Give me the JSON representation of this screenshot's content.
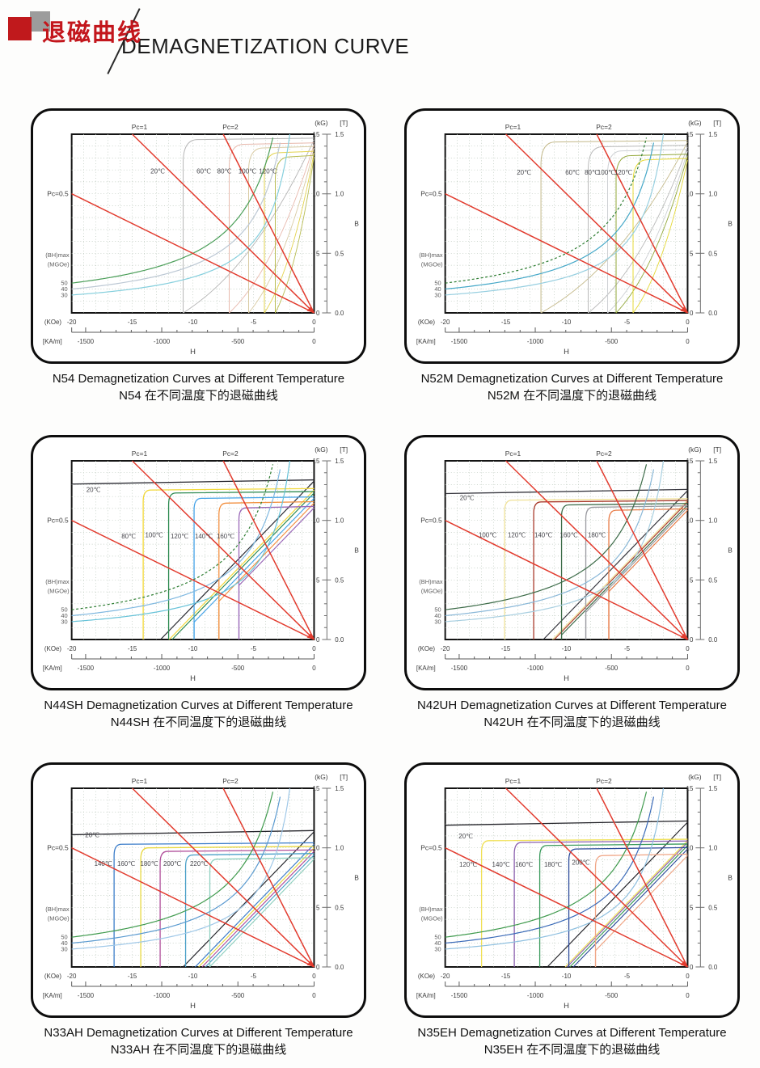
{
  "header": {
    "title_zh": "退磁曲线",
    "title_en": "DEMAGNETIZATION CURVE"
  },
  "colors": {
    "load_line": "#e23b2e",
    "grid": "#b9c6ba",
    "plot_border": "#141414",
    "axis": "#6e6e6e",
    "axis_text": "#3a3a3a",
    "unit_text": "#5f5f5f",
    "header_red": "#c3161c"
  },
  "axes": {
    "kg_unit": "(kG)",
    "t_unit": "[T]",
    "b_label": "B",
    "h_label": "H",
    "kg_tick_values": [
      15,
      10,
      5,
      0
    ],
    "kg_ticks": [
      "15",
      "10",
      "5",
      "0"
    ],
    "t_ticks": [
      "1.5",
      "1.0",
      "0.5",
      "0.0"
    ],
    "koe_label": "(KOe)",
    "koe_ticks": [
      -20,
      -15,
      -10,
      -5,
      0
    ],
    "kam_label": "[KA/m]",
    "kam_ticks": [
      -1500,
      -1000,
      -500,
      0
    ],
    "bhmax_label": "(BH)max",
    "mgoe_label": "(MGOe)",
    "bhmax_values": [
      50,
      40,
      30
    ],
    "pc05": "Pc=0.5",
    "pc1": "Pc=1",
    "pc2": "Pc=2",
    "xlim_koe": [
      -20,
      0
    ],
    "ylim_kg": [
      0,
      15
    ]
  },
  "chart_data": [
    {
      "type": "line",
      "id": "N54",
      "caption_en": "N54 Demagnetization Curves at Different Temperature",
      "caption_zh": "N54 在不同温度下的退磁曲线",
      "xlabel": "H",
      "ylabel": "B",
      "soft_knee": true,
      "load_lines_pc": [
        0.5,
        1,
        2
      ],
      "bhmax_hyperbolas_mgoe": [
        50,
        40,
        30
      ],
      "hyperbola_colors": [
        "#4a9e58",
        "#bcc8d4",
        "#85cfdd"
      ],
      "hyperbola_50_dashed": false,
      "series": [
        {
          "temp_c": 20,
          "label": "20℃",
          "color": "#b5b5b5",
          "br_kg": 14.55,
          "hcj_koe": 10.8,
          "label_pos": [
            -12.9,
            11.7
          ]
        },
        {
          "temp_c": 60,
          "label": "60℃",
          "color": "#e8b9ad",
          "br_kg": 14.15,
          "hcj_koe": 7.0,
          "label_pos": [
            -9.1,
            11.7
          ]
        },
        {
          "temp_c": 80,
          "label": "80℃",
          "color": "#d9cba4",
          "br_kg": 13.85,
          "hcj_koe": 5.4,
          "label_pos": [
            -7.4,
            11.7
          ]
        },
        {
          "temp_c": 100,
          "label": "100℃",
          "color": "#e3d34f",
          "br_kg": 13.45,
          "hcj_koe": 4.1,
          "label_pos": [
            -5.5,
            11.7
          ]
        },
        {
          "temp_c": 120,
          "label": "120℃",
          "color": "#b8bc52",
          "br_kg": 13.1,
          "hcj_koe": 3.2,
          "label_pos": [
            -3.8,
            11.7
          ]
        }
      ]
    },
    {
      "type": "line",
      "id": "N52M",
      "caption_en": "N52M Demagnetization Curves at Different Temperature",
      "caption_zh": "N52M 在不同温度下的退磁曲线",
      "xlabel": "H",
      "ylabel": "B",
      "soft_knee": true,
      "load_lines_pc": [
        0.5,
        1,
        2
      ],
      "bhmax_hyperbolas_mgoe": [
        50,
        40,
        30
      ],
      "hyperbola_colors": [
        "#2e7d32",
        "#45a8c8",
        "#97cfe0"
      ],
      "hyperbola_50_dashed": true,
      "series": [
        {
          "temp_c": 20,
          "label": "20℃",
          "color": "#c4b98a",
          "br_kg": 14.35,
          "hcj_koe": 12.1,
          "label_pos": [
            -13.5,
            11.6
          ]
        },
        {
          "temp_c": 60,
          "label": "60℃",
          "color": "#b9b9b9",
          "br_kg": 13.95,
          "hcj_koe": 8.2,
          "label_pos": [
            -9.5,
            11.6
          ]
        },
        {
          "temp_c": 80,
          "label": "80℃",
          "color": "#cdd0d4",
          "br_kg": 13.6,
          "hcj_koe": 6.6,
          "label_pos": [
            -7.9,
            11.6
          ]
        },
        {
          "temp_c": 100,
          "label": "100℃",
          "color": "#93a83b",
          "br_kg": 13.2,
          "hcj_koe": 5.9,
          "label_pos": [
            -6.7,
            11.6
          ]
        },
        {
          "temp_c": 120,
          "label": "120℃",
          "color": "#e4d835",
          "br_kg": 12.85,
          "hcj_koe": 4.5,
          "label_pos": [
            -5.3,
            11.6
          ]
        }
      ]
    },
    {
      "type": "line",
      "id": "N44SH",
      "caption_en": "N44SH Demagnetization Curves at Different Temperature",
      "caption_zh": "N44SH 在不同温度下的退磁曲线",
      "xlabel": "H",
      "ylabel": "B",
      "soft_knee": false,
      "load_lines_pc": [
        0.5,
        1,
        2
      ],
      "bhmax_hyperbolas_mgoe": [
        50,
        40,
        30
      ],
      "hyperbola_colors": [
        "#2e7d32",
        "#7fb8e0",
        "#66c2d8"
      ],
      "hyperbola_50_dashed": true,
      "series": [
        {
          "temp_c": 20,
          "label": "20℃",
          "color": "#26262e",
          "br_kg": 13.3,
          "hcj_koe": 21,
          "label_pos": [
            -18.2,
            12.4
          ]
        },
        {
          "temp_c": 80,
          "label": "80℃",
          "color": "#f2d838",
          "br_kg": 12.55,
          "hcj_koe": 14.1,
          "label_pos": [
            -15.3,
            8.5
          ]
        },
        {
          "temp_c": 100,
          "label": "100℃",
          "color": "#2c8a50",
          "br_kg": 12.3,
          "hcj_koe": 12.0,
          "label_pos": [
            -13.2,
            8.6
          ]
        },
        {
          "temp_c": 120,
          "label": "120℃",
          "color": "#44a3e8",
          "br_kg": 11.85,
          "hcj_koe": 9.9,
          "label_pos": [
            -11.1,
            8.5
          ]
        },
        {
          "temp_c": 140,
          "label": "140℃",
          "color": "#f29040",
          "br_kg": 11.45,
          "hcj_koe": 7.85,
          "label_pos": [
            -9.1,
            8.5
          ]
        },
        {
          "temp_c": 160,
          "label": "160℃",
          "color": "#9a68b8",
          "br_kg": 11.05,
          "hcj_koe": 6.2,
          "label_pos": [
            -7.3,
            8.5
          ]
        }
      ]
    },
    {
      "type": "line",
      "id": "N42UH",
      "caption_en": "N42UH Demagnetization Curves at Different Temperature",
      "caption_zh": "N42UH 在不同温度下的退磁曲线",
      "xlabel": "H",
      "ylabel": "B",
      "soft_knee": false,
      "load_lines_pc": [
        0.5,
        1,
        2
      ],
      "bhmax_hyperbolas_mgoe": [
        50,
        40,
        30
      ],
      "hyperbola_colors": [
        "#3c6b48",
        "#8ab8d8",
        "#a8cfe0"
      ],
      "hyperbola_50_dashed": false,
      "series": [
        {
          "temp_c": 20,
          "label": "20℃",
          "color": "#34343c",
          "br_kg": 12.5,
          "hcj_koe": 21,
          "label_pos": [
            -18.2,
            11.7
          ]
        },
        {
          "temp_c": 100,
          "label": "100℃",
          "color": "#f0e298",
          "br_kg": 11.7,
          "hcj_koe": 15.1,
          "label_pos": [
            -16.5,
            8.6
          ]
        },
        {
          "temp_c": 120,
          "label": "120℃",
          "color": "#a8392a",
          "br_kg": 11.55,
          "hcj_koe": 12.7,
          "label_pos": [
            -14.1,
            8.6
          ]
        },
        {
          "temp_c": 140,
          "label": "140℃",
          "color": "#3c6b48",
          "br_kg": 11.3,
          "hcj_koe": 10.4,
          "label_pos": [
            -11.9,
            8.6
          ]
        },
        {
          "temp_c": 160,
          "label": "160℃",
          "color": "#9a9aa0",
          "br_kg": 11.1,
          "hcj_koe": 8.4,
          "label_pos": [
            -9.8,
            8.6
          ]
        },
        {
          "temp_c": 180,
          "label": "180℃",
          "color": "#e87a45",
          "br_kg": 10.85,
          "hcj_koe": 6.5,
          "label_pos": [
            -7.5,
            8.6
          ]
        }
      ]
    },
    {
      "type": "line",
      "id": "N33AH",
      "caption_en": "N33AH Demagnetization Curves at Different Temperature",
      "caption_zh": "N33AH 在不同温度下的退磁曲线",
      "xlabel": "H",
      "ylabel": "B",
      "soft_knee": false,
      "load_lines_pc": [
        0.5,
        1,
        2
      ],
      "bhmax_hyperbolas_mgoe": [
        50,
        40,
        30
      ],
      "hyperbola_colors": [
        "#3f9a4d",
        "#5a9ad0",
        "#9fc8e8"
      ],
      "hyperbola_50_dashed": false,
      "series": [
        {
          "temp_c": 20,
          "label": "20℃",
          "color": "#222228",
          "br_kg": 11.35,
          "hcj_koe": 21,
          "label_pos": [
            -18.3,
            10.9
          ]
        },
        {
          "temp_c": 140,
          "label": "140℃",
          "color": "#3a7cc9",
          "br_kg": 10.3,
          "hcj_koe": 16.5,
          "label_pos": [
            -17.4,
            8.5
          ]
        },
        {
          "temp_c": 160,
          "label": "160℃",
          "color": "#e8d83f",
          "br_kg": 10.0,
          "hcj_koe": 14.3,
          "label_pos": [
            -15.5,
            8.5
          ]
        },
        {
          "temp_c": 180,
          "label": "180℃",
          "color": "#b04f9a",
          "br_kg": 9.7,
          "hcj_koe": 12.7,
          "label_pos": [
            -13.6,
            8.5
          ]
        },
        {
          "temp_c": 200,
          "label": "200℃",
          "color": "#4aa0c8",
          "br_kg": 9.4,
          "hcj_koe": 10.6,
          "label_pos": [
            -11.7,
            8.5
          ]
        },
        {
          "temp_c": 220,
          "label": "220℃",
          "color": "#8fd0c0",
          "br_kg": 9.05,
          "hcj_koe": 8.6,
          "label_pos": [
            -9.5,
            8.5
          ]
        }
      ]
    },
    {
      "type": "line",
      "id": "N35EH",
      "caption_en": "N35EH Demagnetization Curves at Different Temperature",
      "caption_zh": "N35EH 在不同温度下的退磁曲线",
      "xlabel": "H",
      "ylabel": "B",
      "soft_knee": false,
      "load_lines_pc": [
        0.5,
        1,
        2
      ],
      "bhmax_hyperbolas_mgoe": [
        50,
        40,
        30
      ],
      "hyperbola_colors": [
        "#3f9a4d",
        "#3a6ab8",
        "#8fc0e0"
      ],
      "hyperbola_50_dashed": false,
      "series": [
        {
          "temp_c": 20,
          "label": "20℃",
          "color": "#222228",
          "br_kg": 12.15,
          "hcj_koe": 21,
          "label_pos": [
            -18.3,
            10.8
          ]
        },
        {
          "temp_c": 120,
          "label": "120℃",
          "color": "#f0e055",
          "br_kg": 10.6,
          "hcj_koe": 17.0,
          "label_pos": [
            -18.1,
            8.4
          ]
        },
        {
          "temp_c": 140,
          "label": "140℃",
          "color": "#8a5fae",
          "br_kg": 10.45,
          "hcj_koe": 14.3,
          "label_pos": [
            -15.4,
            8.4
          ]
        },
        {
          "temp_c": 160,
          "label": "160℃",
          "color": "#3a9a5c",
          "br_kg": 10.2,
          "hcj_koe": 12.2,
          "label_pos": [
            -13.5,
            8.4
          ]
        },
        {
          "temp_c": 180,
          "label": "180℃",
          "color": "#2c4a9a",
          "br_kg": 9.9,
          "hcj_koe": 9.8,
          "label_pos": [
            -11.1,
            8.4
          ]
        },
        {
          "temp_c": 200,
          "label": "200℃",
          "color": "#f0a585",
          "br_kg": 9.35,
          "hcj_koe": 7.6,
          "label_pos": [
            -8.8,
            8.6
          ]
        }
      ]
    }
  ]
}
